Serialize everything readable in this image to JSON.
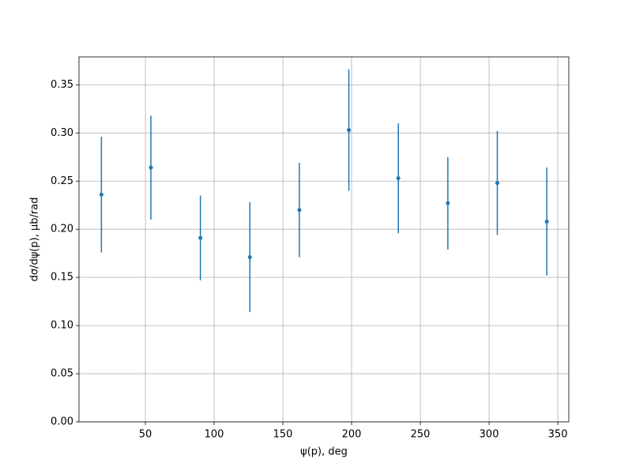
{
  "chart_data": {
    "type": "errorbar",
    "xlabel": "ψ(p), deg",
    "ylabel": "dσ/dψ(p), μb/rad",
    "x": [
      18,
      54,
      90,
      126,
      162,
      198,
      234,
      270,
      306,
      342
    ],
    "values": [
      0.236,
      0.264,
      0.191,
      0.171,
      0.22,
      0.303,
      0.253,
      0.227,
      0.248,
      0.208
    ],
    "errors": [
      0.06,
      0.054,
      0.044,
      0.057,
      0.049,
      0.063,
      0.057,
      0.048,
      0.054,
      0.056
    ],
    "color": "#1f77b4",
    "xlim": [
      1.7,
      358
    ],
    "ylim": [
      0,
      0.379
    ],
    "xticks": [
      50,
      100,
      150,
      200,
      250,
      300,
      350
    ],
    "yticks": [
      {
        "value": 0,
        "label": "0.00"
      },
      {
        "value": 0.05,
        "label": "0.05"
      },
      {
        "value": 0.1,
        "label": "0.10"
      },
      {
        "value": 0.15,
        "label": "0.15"
      },
      {
        "value": 0.2,
        "label": "0.20"
      },
      {
        "value": 0.25,
        "label": "0.25"
      },
      {
        "value": 0.3,
        "label": "0.30"
      },
      {
        "value": 0.35,
        "label": "0.35"
      }
    ],
    "grid": true
  }
}
